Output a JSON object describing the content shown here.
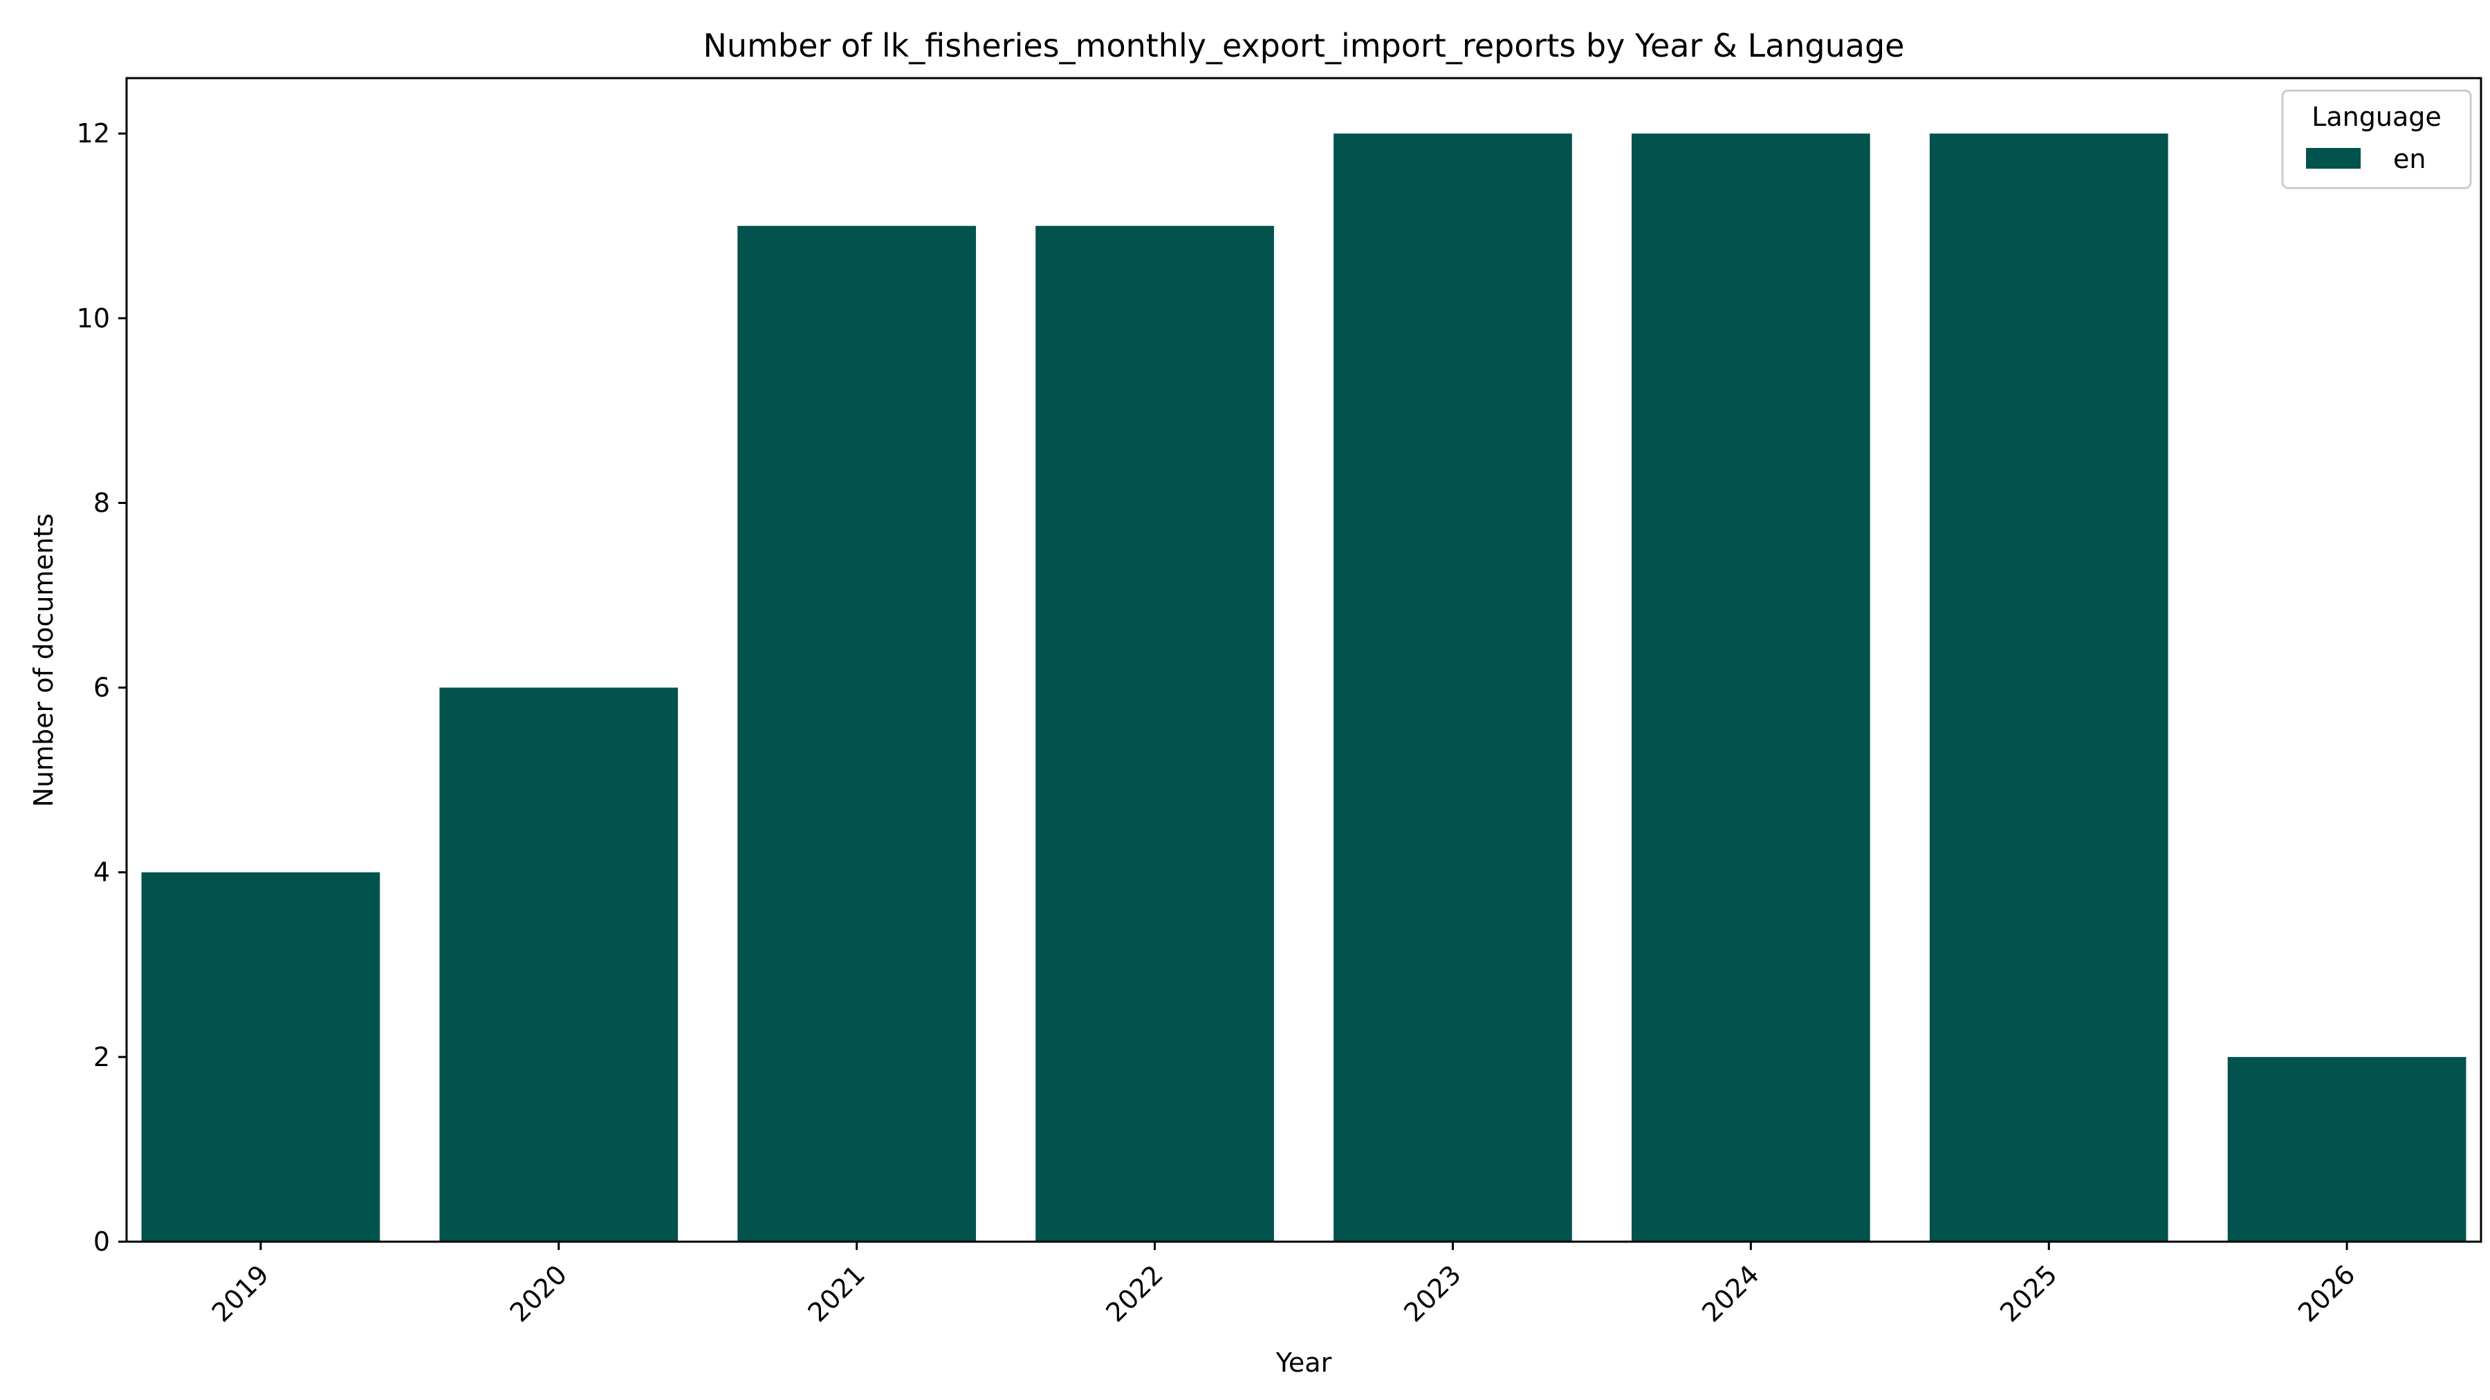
{
  "chart_data": {
    "type": "bar",
    "title": "Number of lk_fisheries_monthly_export_import_reports by Year & Language",
    "xlabel": "Year",
    "ylabel": "Number of documents",
    "categories": [
      "2019",
      "2020",
      "2021",
      "2022",
      "2023",
      "2024",
      "2025",
      "2026"
    ],
    "series": [
      {
        "name": "en",
        "values": [
          4,
          6,
          11,
          11,
          12,
          12,
          12,
          2
        ],
        "color": "#02524e"
      }
    ],
    "ylim": [
      0,
      12.6
    ],
    "yticks": [
      0,
      2,
      4,
      6,
      8,
      10,
      12
    ],
    "grid": false,
    "legend": {
      "title": "Language",
      "placement": "top-right"
    }
  }
}
